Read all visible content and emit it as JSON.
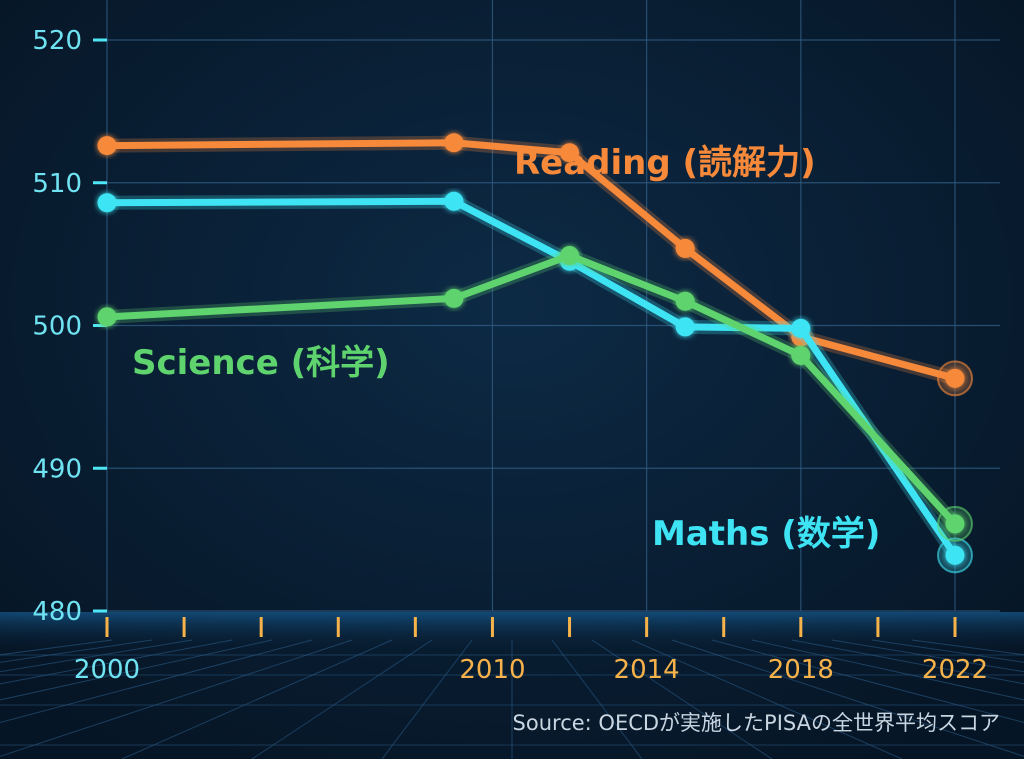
{
  "chart_data": {
    "type": "line",
    "title": "",
    "xlabel": "",
    "ylabel": "",
    "x_ticks": [
      "2000",
      "2010",
      "2014",
      "2018",
      "2022"
    ],
    "y_ticks": [
      "480",
      "490",
      "500",
      "510",
      "520"
    ],
    "xlim": [
      2000,
      2022
    ],
    "ylim": [
      480,
      520
    ],
    "grid": true,
    "series": [
      {
        "name": "Reading (読解力)",
        "color": "#f7893b",
        "x": [
          2000,
          2009,
          2012,
          2015,
          2018,
          2022
        ],
        "y": [
          512.6,
          512.8,
          512.1,
          505.4,
          499.2,
          496.3
        ]
      },
      {
        "name": "Maths (数学)",
        "color": "#3ee4f4",
        "x": [
          2000,
          2009,
          2012,
          2015,
          2018,
          2022
        ],
        "y": [
          508.6,
          508.7,
          504.5,
          499.9,
          499.8,
          483.9
        ]
      },
      {
        "name": "Science (科学)",
        "color": "#5fd46e",
        "x": [
          2000,
          2009,
          2012,
          2015,
          2018,
          2022
        ],
        "y": [
          500.6,
          501.9,
          504.9,
          501.7,
          497.9,
          486.1
        ]
      }
    ],
    "source": "Source: OECDが実施したPISAの全世界平均スコア"
  }
}
